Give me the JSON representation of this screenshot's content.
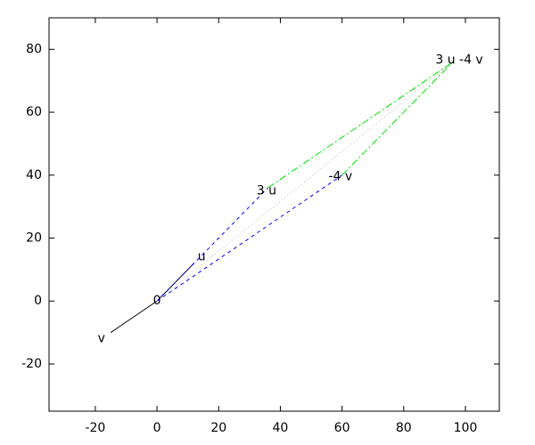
{
  "chart_data": {
    "type": "vector",
    "xlim": [
      -35,
      111
    ],
    "ylim": [
      -35,
      90
    ],
    "xticks": [
      -20,
      0,
      20,
      40,
      60,
      80,
      100
    ],
    "yticks": [
      -20,
      0,
      20,
      40,
      60,
      80
    ],
    "series": [
      {
        "color": "#000000",
        "style": "solid",
        "x": [
          0,
          12
        ],
        "y": [
          0,
          12
        ]
      },
      {
        "color": "#000000",
        "style": "solid",
        "x": [
          0,
          -15
        ],
        "y": [
          0,
          -10
        ]
      },
      {
        "color": "#0000ff",
        "style": "dashed",
        "x": [
          0,
          36
        ],
        "y": [
          0,
          36
        ]
      },
      {
        "color": "#0000ff",
        "style": "dashed",
        "x": [
          0,
          60
        ],
        "y": [
          0,
          40
        ]
      },
      {
        "color": "#00dd00",
        "style": "dashdot",
        "x": [
          36,
          96
        ],
        "y": [
          36,
          76
        ]
      },
      {
        "color": "#00dd00",
        "style": "dashdot",
        "x": [
          60,
          96
        ],
        "y": [
          40,
          76
        ]
      },
      {
        "color": "#bbbbbb",
        "style": "dotted",
        "x": [
          0,
          96
        ],
        "y": [
          0,
          76
        ]
      }
    ],
    "labels": [
      {
        "text": "0",
        "x": 0,
        "y": 0
      },
      {
        "text": "u",
        "x": 14.5,
        "y": 14
      },
      {
        "text": "v",
        "x": -18,
        "y": -12
      },
      {
        "text": "3 u",
        "x": 35.5,
        "y": 35
      },
      {
        "text": "-4 v",
        "x": 59.5,
        "y": 39.5
      },
      {
        "text": "3 u -4 v",
        "x": 98,
        "y": 76.5
      }
    ]
  }
}
